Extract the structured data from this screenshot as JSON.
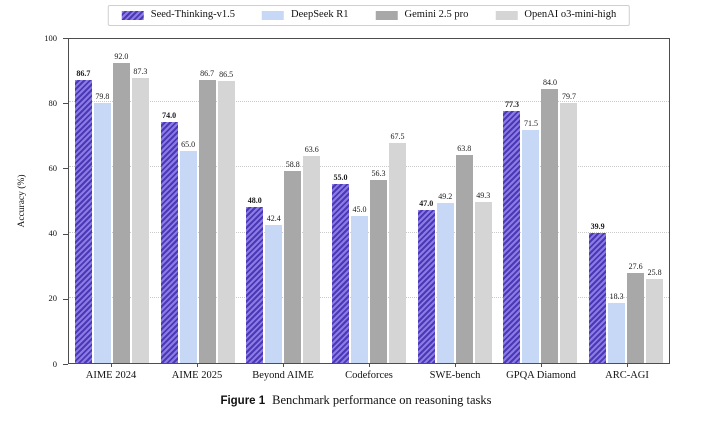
{
  "caption": {
    "figure_label": "Figure 1",
    "text": "Benchmark performance on reasoning tasks"
  },
  "chart_data": {
    "type": "bar",
    "title": "",
    "xlabel": "",
    "ylabel": "Accuracy (%)",
    "ylim": [
      0,
      100
    ],
    "yticks": [
      0,
      20,
      40,
      60,
      80,
      100
    ],
    "gridlines_at": [
      20,
      40,
      60,
      80
    ],
    "grid_style": "dotted",
    "legend_position": "top-center",
    "legend_border": "#cfcfcf",
    "categories": [
      "AIME 2024",
      "AIME 2025",
      "Beyond AIME",
      "Codeforces",
      "SWE-bench",
      "GPQA Diamond",
      "ARC-AGI"
    ],
    "series": [
      {
        "name": "Seed-Thinking-v1.5",
        "style": "hatched",
        "fill": "#8a7ce4",
        "hatch_color": "#4b38b6",
        "hatch": "//",
        "label_bold": true,
        "values": [
          86.7,
          74.0,
          48.0,
          55.0,
          47.0,
          77.3,
          39.9
        ]
      },
      {
        "name": "DeepSeek R1",
        "style": "solid",
        "fill": "#c7d7f6",
        "label_bold": false,
        "values": [
          79.8,
          65.0,
          42.4,
          45.0,
          49.2,
          71.5,
          18.3
        ]
      },
      {
        "name": "Gemini 2.5 pro",
        "style": "solid",
        "fill": "#a8a8a8",
        "label_bold": false,
        "values": [
          92.0,
          86.7,
          58.8,
          56.3,
          63.8,
          84.0,
          27.6
        ]
      },
      {
        "name": "OpenAI o3-mini-high",
        "style": "solid",
        "fill": "#d5d5d5",
        "label_bold": false,
        "values": [
          87.3,
          86.5,
          63.6,
          67.5,
          49.3,
          79.7,
          25.8
        ]
      }
    ]
  }
}
